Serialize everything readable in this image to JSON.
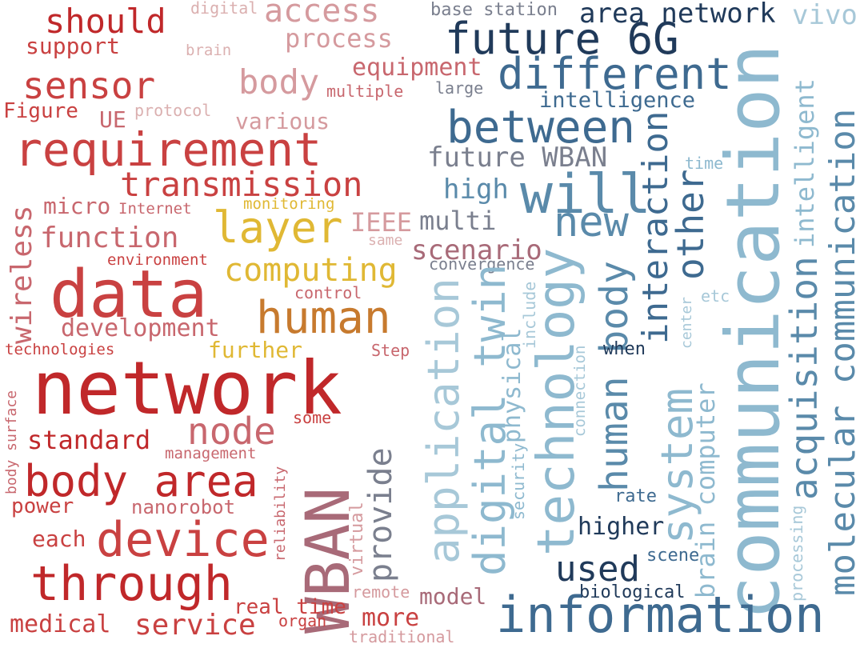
{
  "colors": {
    "background": "#ffffff",
    "red_dark": "#c0282a",
    "red": "#c94141",
    "rose": "#c8676e",
    "pink": "#d59a9e",
    "pink_light": "#dbb0b0",
    "gold": "#e0b834",
    "orange": "#c77a2e",
    "mauve": "#a86a78",
    "grey": "#7a7f8e",
    "navy": "#203a5a",
    "blue": "#3e6a90",
    "steel": "#5a8aaa",
    "light_blue": "#8eb9cf",
    "pale_blue": "#a7c8d8"
  },
  "words": [
    {
      "text": "network",
      "color": "#c0282a"
    },
    {
      "text": "data",
      "color": "#c94141"
    },
    {
      "text": "requirement",
      "color": "#c94141"
    },
    {
      "text": "through",
      "color": "#c0282a"
    },
    {
      "text": "device",
      "color": "#c94141"
    },
    {
      "text": "body area",
      "color": "#c0282a"
    },
    {
      "text": "sensor",
      "color": "#c94141"
    },
    {
      "text": "should",
      "color": "#c0282a"
    },
    {
      "text": "transmission",
      "color": "#c94141"
    },
    {
      "text": "function",
      "color": "#c8676e"
    },
    {
      "text": "development",
      "color": "#c8676e"
    },
    {
      "text": "node",
      "color": "#c8676e"
    },
    {
      "text": "standard",
      "color": "#c0282a"
    },
    {
      "text": "wireless",
      "color": "#c8676e"
    },
    {
      "text": "service",
      "color": "#c94141"
    },
    {
      "text": "medical",
      "color": "#c94141"
    },
    {
      "text": "support",
      "color": "#c94141"
    },
    {
      "text": "Figure",
      "color": "#c94141"
    },
    {
      "text": "UE",
      "color": "#c8676e"
    },
    {
      "text": "micro",
      "color": "#c8676e"
    },
    {
      "text": "power",
      "color": "#c94141"
    },
    {
      "text": "each",
      "color": "#c94141"
    },
    {
      "text": "nanorobot",
      "color": "#c8676e"
    },
    {
      "text": "technologies",
      "color": "#c94141"
    },
    {
      "text": "body surface",
      "color": "#c8676e"
    },
    {
      "text": "management",
      "color": "#c8676e"
    },
    {
      "text": "Internet",
      "color": "#c8676e"
    },
    {
      "text": "environment",
      "color": "#c94141"
    },
    {
      "text": "protocol",
      "color": "#dbb0b0"
    },
    {
      "text": "access",
      "color": "#d59a9e"
    },
    {
      "text": "digital",
      "color": "#dbb0b0"
    },
    {
      "text": "brain",
      "color": "#dbb0b0"
    },
    {
      "text": "process",
      "color": "#d59a9e"
    },
    {
      "text": "equipment",
      "color": "#c8676e"
    },
    {
      "text": "body",
      "color": "#d59a9e"
    },
    {
      "text": "multiple",
      "color": "#c8676e"
    },
    {
      "text": "various",
      "color": "#d59a9e"
    },
    {
      "text": "layer",
      "color": "#e0b834"
    },
    {
      "text": "monitoring",
      "color": "#e0b834"
    },
    {
      "text": "computing",
      "color": "#e0b834"
    },
    {
      "text": "human",
      "color": "#c77a2e"
    },
    {
      "text": "further",
      "color": "#e0b834"
    },
    {
      "text": "control",
      "color": "#c8676e"
    },
    {
      "text": "IEEE",
      "color": "#d59a9e"
    },
    {
      "text": "same",
      "color": "#dbb0b0"
    },
    {
      "text": "Step",
      "color": "#c8676e"
    },
    {
      "text": "some",
      "color": "#c94141"
    },
    {
      "text": "reliability",
      "color": "#c8676e"
    },
    {
      "text": "WBAN",
      "color": "#a86a78"
    },
    {
      "text": "virtual",
      "color": "#d59a9e"
    },
    {
      "text": "remote",
      "color": "#d59a9e"
    },
    {
      "text": "provide",
      "color": "#7a7f8e"
    },
    {
      "text": "real time",
      "color": "#c94141"
    },
    {
      "text": "organ",
      "color": "#c94141"
    },
    {
      "text": "more",
      "color": "#c94141"
    },
    {
      "text": "traditional",
      "color": "#d59a9e"
    },
    {
      "text": "model",
      "color": "#a86a78"
    },
    {
      "text": "multi",
      "color": "#7a7f8e"
    },
    {
      "text": "scenario",
      "color": "#a86a78"
    },
    {
      "text": "convergence",
      "color": "#7a7f8e"
    },
    {
      "text": "base station",
      "color": "#7a7f8e"
    },
    {
      "text": "large",
      "color": "#7a7f8e"
    },
    {
      "text": "future WBAN",
      "color": "#7a7f8e"
    },
    {
      "text": "future 6G",
      "color": "#203a5a"
    },
    {
      "text": "different",
      "color": "#3e6a90"
    },
    {
      "text": "area network",
      "color": "#203a5a"
    },
    {
      "text": "intelligence",
      "color": "#3e6a90"
    },
    {
      "text": "between",
      "color": "#3e6a90"
    },
    {
      "text": "will",
      "color": "#5a8aaa"
    },
    {
      "text": "high",
      "color": "#5a8aaa"
    },
    {
      "text": "new",
      "color": "#5a8aaa"
    },
    {
      "text": "vivo",
      "color": "#a7c8d8"
    },
    {
      "text": "communication",
      "color": "#8eb9cf"
    },
    {
      "text": "intelligent",
      "color": "#8eb9cf"
    },
    {
      "text": "acquisition",
      "color": "#5a8aaa"
    },
    {
      "text": "molecular communication",
      "color": "#5a8aaa"
    },
    {
      "text": "other",
      "color": "#3e6a90"
    },
    {
      "text": "interaction",
      "color": "#3e6a90"
    },
    {
      "text": "time",
      "color": "#8eb9cf"
    },
    {
      "text": "etc",
      "color": "#a7c8d8"
    },
    {
      "text": "center",
      "color": "#a7c8d8"
    },
    {
      "text": "system",
      "color": "#8eb9cf"
    },
    {
      "text": "human body",
      "color": "#5a8aaa"
    },
    {
      "text": "brain computer",
      "color": "#8eb9cf"
    },
    {
      "text": "technology",
      "color": "#8eb9cf"
    },
    {
      "text": "digital twin",
      "color": "#8eb9cf"
    },
    {
      "text": "application",
      "color": "#a7c8d8"
    },
    {
      "text": "physical",
      "color": "#8eb9cf"
    },
    {
      "text": "include",
      "color": "#a7c8d8"
    },
    {
      "text": "when",
      "color": "#203a5a"
    },
    {
      "text": "connection",
      "color": "#a7c8d8"
    },
    {
      "text": "security",
      "color": "#8eb9cf"
    },
    {
      "text": "rate",
      "color": "#3e6a90"
    },
    {
      "text": "higher",
      "color": "#203a5a"
    },
    {
      "text": "used",
      "color": "#203a5a"
    },
    {
      "text": "scene",
      "color": "#3e6a90"
    },
    {
      "text": "biological",
      "color": "#203a5a"
    },
    {
      "text": "information",
      "color": "#3e6a90"
    },
    {
      "text": "processing",
      "color": "#a7c8d8"
    }
  ]
}
